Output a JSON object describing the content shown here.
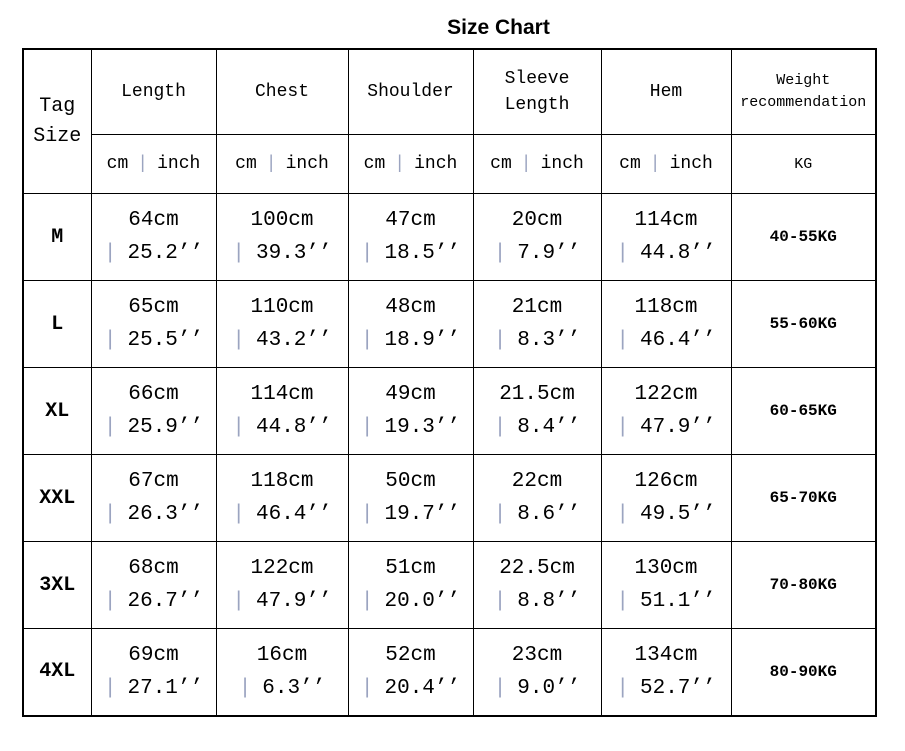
{
  "title": "Size Chart",
  "colors": {
    "border": "#000000",
    "text": "#000000",
    "separator": "#9ba4c0",
    "background": "#ffffff"
  },
  "chart_data": {
    "type": "table",
    "title": "Size Chart",
    "corner_header": {
      "line1": "Tag",
      "line2": "Size"
    },
    "columns": [
      "Length",
      "Chest",
      "Shoulder",
      "Sleeve Length",
      "Hem"
    ],
    "weight_header": {
      "line1": "Weight",
      "line2": "recommendation"
    },
    "units_row": {
      "cm": "cm",
      "separator": "|",
      "inch": "inch",
      "weight_unit": "KG"
    },
    "rows": [
      {
        "tag": "M",
        "values": [
          {
            "cm": "64cm",
            "inch": "25.2’’"
          },
          {
            "cm": "100cm",
            "inch": "39.3’’"
          },
          {
            "cm": "47cm",
            "inch": "18.5’’"
          },
          {
            "cm": "20cm",
            "inch": "7.9’’"
          },
          {
            "cm": "114cm",
            "inch": "44.8’’"
          }
        ],
        "weight": "40-55KG"
      },
      {
        "tag": "L",
        "values": [
          {
            "cm": "65cm",
            "inch": "25.5’’"
          },
          {
            "cm": "110cm",
            "inch": "43.2’’"
          },
          {
            "cm": "48cm",
            "inch": "18.9’’"
          },
          {
            "cm": "21cm",
            "inch": "8.3’’"
          },
          {
            "cm": "118cm",
            "inch": "46.4’’"
          }
        ],
        "weight": "55-60KG"
      },
      {
        "tag": "XL",
        "values": [
          {
            "cm": "66cm",
            "inch": "25.9’’"
          },
          {
            "cm": "114cm",
            "inch": "44.8’’"
          },
          {
            "cm": "49cm",
            "inch": "19.3’’"
          },
          {
            "cm": "21.5cm",
            "inch": "8.4’’"
          },
          {
            "cm": "122cm",
            "inch": "47.9’’"
          }
        ],
        "weight": "60-65KG"
      },
      {
        "tag": "XXL",
        "values": [
          {
            "cm": "67cm",
            "inch": "26.3’’"
          },
          {
            "cm": "118cm",
            "inch": "46.4’’"
          },
          {
            "cm": "50cm",
            "inch": "19.7’’"
          },
          {
            "cm": "22cm",
            "inch": "8.6’’"
          },
          {
            "cm": "126cm",
            "inch": "49.5’’"
          }
        ],
        "weight": "65-70KG"
      },
      {
        "tag": "3XL",
        "values": [
          {
            "cm": "68cm",
            "inch": "26.7’’"
          },
          {
            "cm": "122cm",
            "inch": "47.9’’"
          },
          {
            "cm": "51cm",
            "inch": "20.0’’"
          },
          {
            "cm": "22.5cm",
            "inch": "8.8’’"
          },
          {
            "cm": "130cm",
            "inch": "51.1’’"
          }
        ],
        "weight": "70-80KG"
      },
      {
        "tag": "4XL",
        "values": [
          {
            "cm": "69cm",
            "inch": "27.1’’"
          },
          {
            "cm": "16cm",
            "inch": "6.3’’"
          },
          {
            "cm": "52cm",
            "inch": "20.4’’"
          },
          {
            "cm": "23cm",
            "inch": "9.0’’"
          },
          {
            "cm": "134cm",
            "inch": "52.7’’"
          }
        ],
        "weight": "80-90KG"
      }
    ]
  }
}
